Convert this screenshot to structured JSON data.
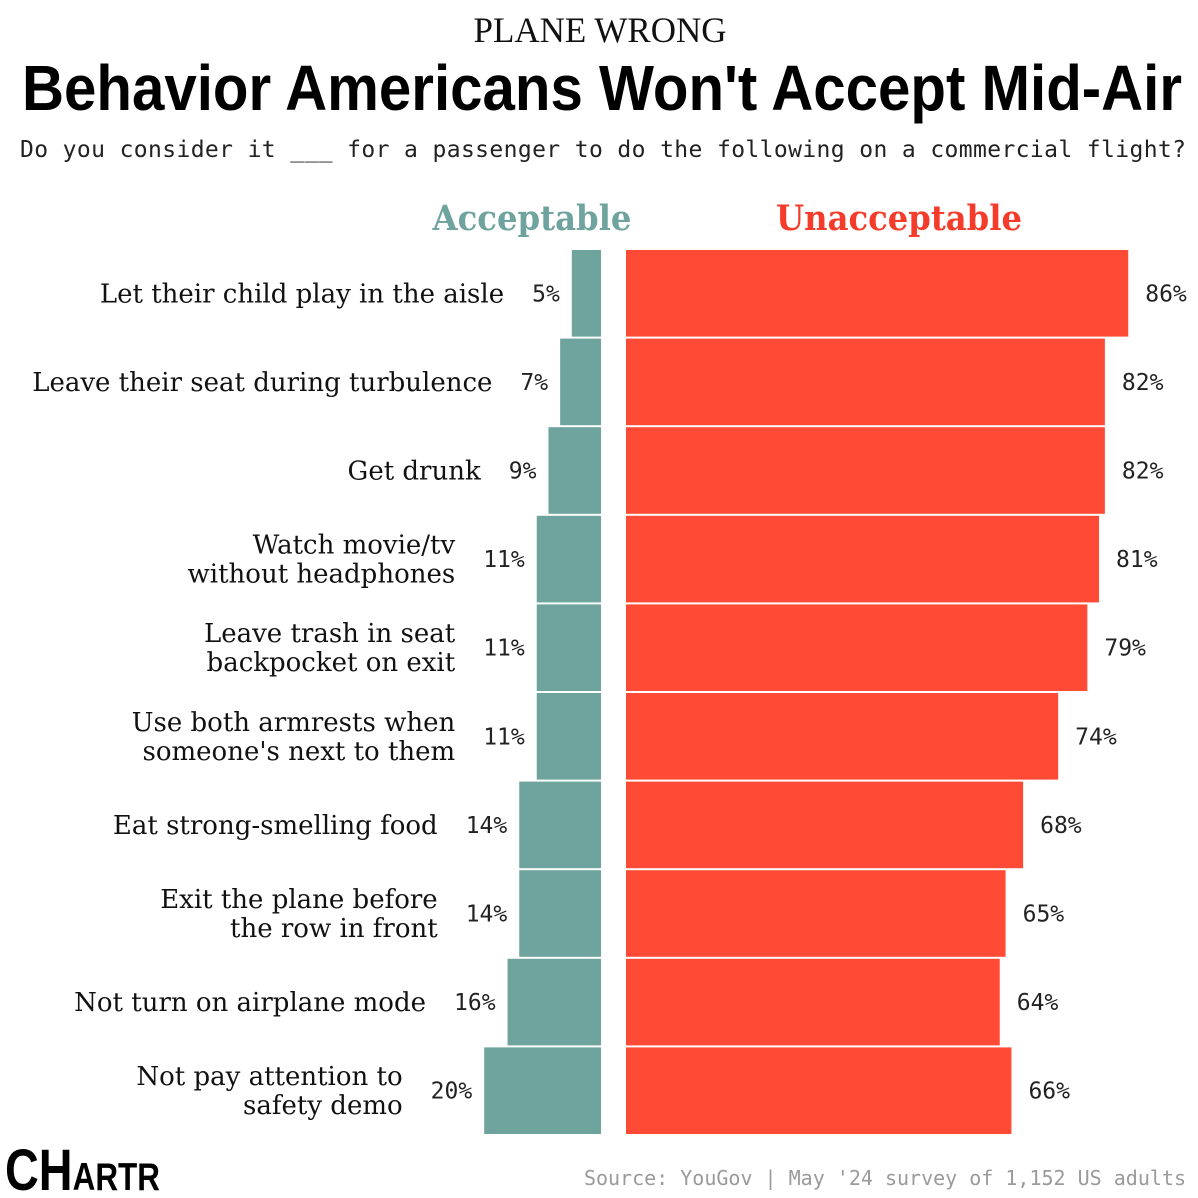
{
  "chart_data": {
    "type": "bar",
    "kicker": "PLANE WRONG",
    "title": "Behavior Americans Won't Accept Mid-Air",
    "subtitle": "Do you consider it ___ for a passenger to do the following on a commercial flight?",
    "categories": [
      [
        "Let their child play in the aisle"
      ],
      [
        "Leave their seat during turbulence"
      ],
      [
        "Get drunk"
      ],
      [
        "Watch movie/tv",
        "without headphones"
      ],
      [
        "Leave trash in seat",
        "backpocket on exit"
      ],
      [
        "Use both armrests when",
        "someone's next to them"
      ],
      [
        "Eat strong-smelling food"
      ],
      [
        "Exit the plane before",
        "the row in front"
      ],
      [
        "Not turn on airplane mode"
      ],
      [
        "Not pay attention to",
        "safety demo"
      ]
    ],
    "series": [
      {
        "name": "Acceptable",
        "values": [
          5,
          7,
          9,
          11,
          11,
          11,
          14,
          14,
          16,
          20
        ],
        "color": "#6fa39e"
      },
      {
        "name": "Unacceptable",
        "values": [
          86,
          82,
          82,
          81,
          79,
          74,
          68,
          65,
          64,
          66
        ],
        "color": "#ff4b36"
      }
    ],
    "value_suffix": "%",
    "legend": "top",
    "grid": false,
    "source": "Source: YouGov | May '24 survey of 1,152 US adults",
    "logo": "CHARTR"
  },
  "colors": {
    "acceptable_text": "#6fa39e",
    "unacceptable_text": "#f53b2a"
  }
}
